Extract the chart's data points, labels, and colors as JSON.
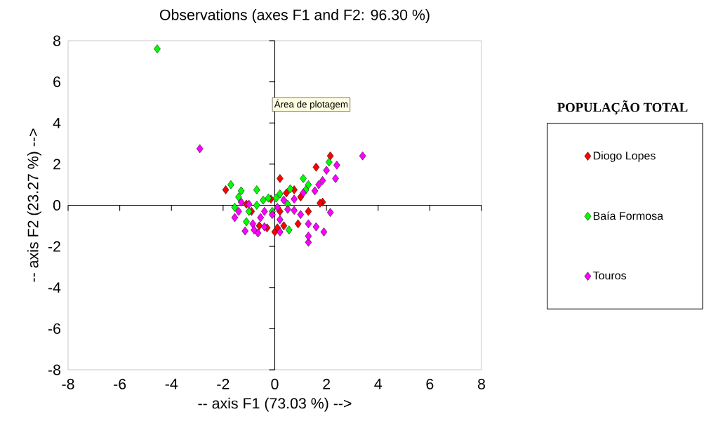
{
  "chart_data": {
    "type": "scatter",
    "title": "Observations (axes F1 and F2: 96.30 %)",
    "xlabel": "-- axis F1 (73.03 %) -->",
    "ylabel": "-- axis F2 (23.27 %) -->",
    "legend_title": "POPULAÇÃO TOTAL",
    "annotations": [
      "Área de plotagem"
    ],
    "xlim": [
      -8,
      8
    ],
    "ylim": [
      -8,
      8
    ],
    "xticks": [
      -8,
      -6,
      -4,
      -2,
      0,
      2,
      4,
      6,
      8
    ],
    "yticks": [
      -8,
      -6,
      -4,
      -2,
      0,
      2,
      4,
      6,
      8
    ],
    "legend": "right",
    "marker": "diamond",
    "series": [
      {
        "name": "Diogo Lopes",
        "color": "#ff0000",
        "x": [
          2.15,
          1.6,
          0.2,
          -1.9,
          1.85,
          -0.3,
          0.0,
          0.75,
          0.45,
          -0.9,
          1.3,
          1.0,
          0.2,
          -1.1,
          1.75,
          0.1,
          0.9,
          0.35,
          -0.6,
          -0.15
        ],
        "values": [
          2.4,
          1.85,
          1.3,
          0.75,
          0.15,
          -1.1,
          -1.3,
          0.75,
          0.6,
          -0.3,
          -0.3,
          0.4,
          -0.3,
          0.05,
          0.1,
          -1.1,
          -0.9,
          -1.0,
          -1.0,
          0.3
        ]
      },
      {
        "name": "Baía Formosa",
        "color": "#00ff00",
        "x": [
          -4.55,
          -1.7,
          -1.3,
          -0.7,
          -1.4,
          1.1,
          2.1,
          0.6,
          1.3,
          0.2,
          -0.25,
          -1.0,
          -1.1,
          -0.1,
          0.5,
          0.55,
          1.2,
          -0.7,
          -0.45,
          0.05,
          -1.55
        ],
        "values": [
          7.6,
          1.0,
          0.7,
          0.75,
          0.4,
          1.3,
          2.1,
          0.8,
          1.0,
          0.55,
          0.35,
          -0.3,
          -0.8,
          -0.3,
          0.05,
          -1.2,
          0.75,
          0.0,
          0.25,
          0.35,
          -0.1
        ]
      },
      {
        "name": "Touros",
        "color": "#ff00ff",
        "x": [
          -2.9,
          3.4,
          2.4,
          2.0,
          2.35,
          1.85,
          1.7,
          2.15,
          1.9,
          1.6,
          1.3,
          1.3,
          1.3,
          1.55,
          1.1,
          0.75,
          0.35,
          0.5,
          0.2,
          -0.1,
          -0.55,
          -0.85,
          -1.15,
          -0.65,
          -1.4,
          -1.55,
          -1.3,
          -1.0,
          -0.4,
          0.1,
          0.75,
          1.0,
          -0.4,
          -0.8,
          0.2
        ],
        "values": [
          2.75,
          2.4,
          1.95,
          1.7,
          1.3,
          1.2,
          1.0,
          -0.35,
          -1.3,
          -1.05,
          -1.8,
          -1.5,
          -0.9,
          0.7,
          0.6,
          0.3,
          0.25,
          -0.2,
          -0.7,
          -0.45,
          -0.6,
          -0.9,
          -1.25,
          -1.35,
          -0.3,
          -0.6,
          0.15,
          0.05,
          -0.3,
          -0.1,
          -0.25,
          -0.45,
          -1.05,
          -1.2,
          -1.3
        ]
      }
    ]
  }
}
